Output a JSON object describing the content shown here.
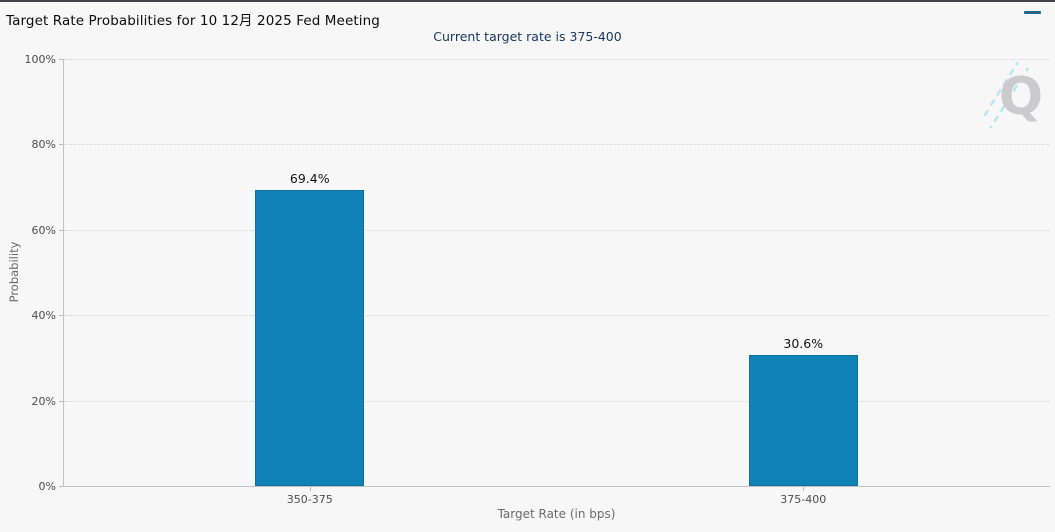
{
  "header": {
    "title": "Target Rate Probabilities for 10 12月 2025 Fed Meeting",
    "menu_icon": "hamburger-icon"
  },
  "subtitle": "Current target rate is 375-400",
  "watermark_letter": "Q",
  "colors": {
    "bar_fill": "#1082b8",
    "bar_border": "#0d719f",
    "subtitle_text": "#17365d",
    "axis_text": "#4e4e4e",
    "gridline": "#d2d2d2",
    "background": "#f7f7f7"
  },
  "chart_data": {
    "type": "bar",
    "title": "Target Rate Probabilities for 10 12月 2025 Fed Meeting",
    "subtitle": "Current target rate is 375-400",
    "categories": [
      "350-375",
      "375-400"
    ],
    "values": [
      69.4,
      30.6
    ],
    "value_labels": [
      "69.4%",
      "30.6%"
    ],
    "xlabel": "Target Rate (in bps)",
    "ylabel": "Probability",
    "ylim": [
      0,
      100
    ],
    "ytick_step": 20,
    "ytick_labels": [
      "0%",
      "20%",
      "40%",
      "60%",
      "80%",
      "100%"
    ],
    "grid": "horizontal-dotted",
    "legend_position": "none",
    "bar_color": "#1082b8"
  }
}
